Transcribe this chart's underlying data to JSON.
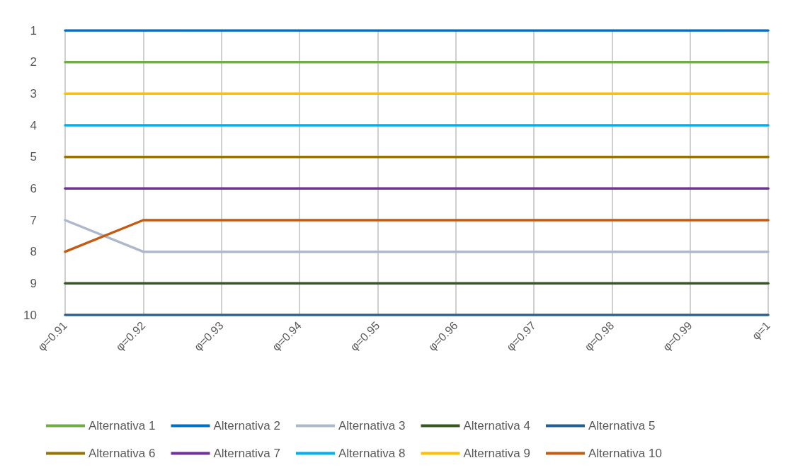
{
  "chart_data": {
    "type": "line",
    "categories": [
      "φ=0.91",
      "φ=0.92",
      "φ=0.93",
      "φ=0.94",
      "φ=0.95",
      "φ=0.96",
      "φ=0.97",
      "φ=0.98",
      "φ=0.99",
      "φ=1"
    ],
    "series": [
      {
        "name": "Alternativa 1",
        "color": "#70ad47",
        "values": [
          2,
          2,
          2,
          2,
          2,
          2,
          2,
          2,
          2,
          2
        ]
      },
      {
        "name": "Alternativa 2",
        "color": "#0070c0",
        "values": [
          1,
          1,
          1,
          1,
          1,
          1,
          1,
          1,
          1,
          1
        ]
      },
      {
        "name": "Alternativa 3",
        "color": "#adb9ca",
        "values": [
          7,
          8,
          8,
          8,
          8,
          8,
          8,
          8,
          8,
          8
        ]
      },
      {
        "name": "Alternativa 4",
        "color": "#375623",
        "values": [
          9,
          9,
          9,
          9,
          9,
          9,
          9,
          9,
          9,
          9
        ]
      },
      {
        "name": "Alternativa 5",
        "color": "#255e91",
        "values": [
          10,
          10,
          10,
          10,
          10,
          10,
          10,
          10,
          10,
          10
        ]
      },
      {
        "name": "Alternativa 6",
        "color": "#997300",
        "values": [
          5,
          5,
          5,
          5,
          5,
          5,
          5,
          5,
          5,
          5
        ]
      },
      {
        "name": "Alternativa 7",
        "color": "#7030a0",
        "values": [
          6,
          6,
          6,
          6,
          6,
          6,
          6,
          6,
          6,
          6
        ]
      },
      {
        "name": "Alternativa 8",
        "color": "#00b0f0",
        "values": [
          4,
          4,
          4,
          4,
          4,
          4,
          4,
          4,
          4,
          4
        ]
      },
      {
        "name": "Alternativa 9",
        "color": "#ffc000",
        "values": [
          3,
          3,
          3,
          3,
          3,
          3,
          3,
          3,
          3,
          3
        ]
      },
      {
        "name": "Alternativa 10",
        "color": "#c55a11",
        "values": [
          8,
          7,
          7,
          7,
          7,
          7,
          7,
          7,
          7,
          7
        ]
      }
    ],
    "ylim": [
      10,
      1
    ],
    "yticks": [
      1,
      2,
      3,
      4,
      5,
      6,
      7,
      8,
      9,
      10
    ],
    "grid": "x",
    "legend": "bottom",
    "marker": "none",
    "line_style": "solid"
  }
}
